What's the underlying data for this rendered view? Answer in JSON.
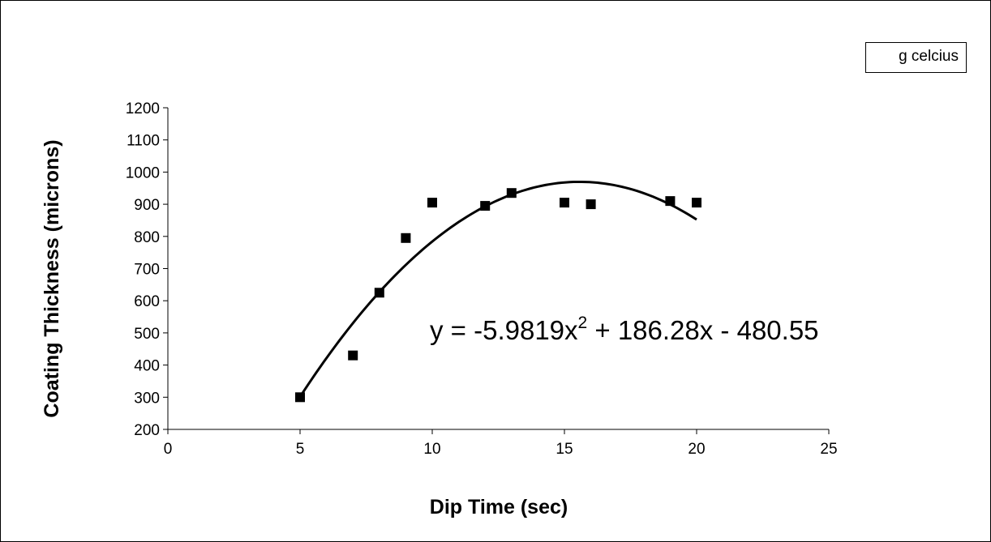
{
  "chart_data": {
    "type": "scatter",
    "xlabel": "Dip Time (sec)",
    "ylabel": "Coating Thickness (microns)",
    "xlim": [
      0,
      25
    ],
    "ylim": [
      200,
      1200
    ],
    "x_ticks": [
      "0",
      "5",
      "10",
      "15",
      "20",
      "25"
    ],
    "y_ticks": [
      "200",
      "300",
      "400",
      "500",
      "600",
      "700",
      "800",
      "900",
      "1000",
      "1100",
      "1200"
    ],
    "grid": false,
    "legend_position": "top-right",
    "legend_text": "g celcius",
    "series": [
      {
        "marker": "square",
        "color": "#000000",
        "x": [
          5,
          7,
          8,
          9,
          10,
          12,
          13,
          15,
          16,
          19,
          20
        ],
        "y": [
          300,
          430,
          625,
          795,
          905,
          895,
          935,
          905,
          900,
          910,
          905
        ]
      }
    ],
    "trendline": {
      "type": "polynomial",
      "order": 2,
      "coefficients": [
        -5.9819,
        186.28,
        -480.55
      ],
      "x_range": [
        5,
        20
      ],
      "color": "#000000",
      "equation_label_prefix": "y = -5.9819x",
      "equation_label_exponent": "2",
      "equation_label_suffix": " + 186.28x - 480.55"
    }
  }
}
